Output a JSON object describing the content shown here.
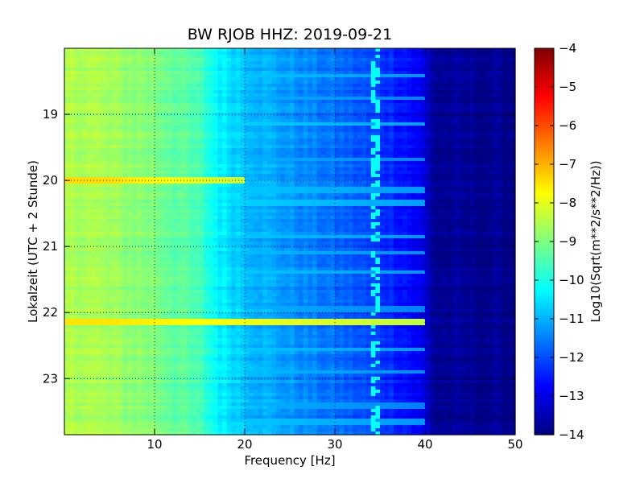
{
  "chart_data": {
    "type": "heatmap",
    "title": "BW RJOB HHZ: 2019-09-21",
    "xlabel": "Frequency [Hz]",
    "ylabel": "Lokalzeit (UTC + 2 Stunde)",
    "xlim": [
      0,
      50
    ],
    "ylim": [
      18.0,
      23.85
    ],
    "y_inverted": true,
    "grid": true,
    "x_ticks": [
      10,
      20,
      30,
      40,
      50
    ],
    "x_tick_labels": [
      "10",
      "20",
      "30",
      "40",
      "50"
    ],
    "y_ticks": [
      19,
      20,
      21,
      22,
      23
    ],
    "y_tick_labels": [
      "19",
      "20",
      "21",
      "22",
      "23"
    ],
    "colorbar": {
      "label": "Log10(Sqrt(m**2/s**2/Hz))",
      "range": [
        -14,
        -4
      ],
      "colormap": "jet",
      "ticks": [
        -14,
        -13,
        -12,
        -11,
        -10,
        -9,
        -8,
        -7,
        -6,
        -5,
        -4
      ],
      "tick_labels": [
        "−14",
        "−13",
        "−12",
        "−11",
        "−10",
        "−9",
        "−8",
        "−7",
        "−6",
        "−5",
        "−4"
      ]
    },
    "background_profile": {
      "frequency_hz": [
        0,
        2,
        5,
        10,
        15,
        17,
        20,
        25,
        30,
        35,
        38,
        40,
        41,
        50
      ],
      "level": [
        -8.6,
        -8.5,
        -8.7,
        -9.0,
        -9.6,
        -10.3,
        -10.8,
        -11.3,
        -11.7,
        -12.2,
        -12.6,
        -13.1,
        -13.8,
        -13.9
      ]
    },
    "events": [
      {
        "time": 18.18,
        "level": -10.3,
        "f_max": 25
      },
      {
        "time": 18.42,
        "level": -10.4,
        "f_max": 40
      },
      {
        "time": 18.75,
        "level": -10.6,
        "f_max": 40
      },
      {
        "time": 19.15,
        "level": -10.3,
        "f_max": 40
      },
      {
        "time": 19.68,
        "level": -10.6,
        "f_max": 40
      },
      {
        "time": 20.0,
        "level": -7.4,
        "f_max": 20
      },
      {
        "time": 20.15,
        "level": -10.4,
        "f_max": 40
      },
      {
        "time": 20.35,
        "level": -10.3,
        "f_max": 40
      },
      {
        "time": 20.85,
        "level": -10.4,
        "f_max": 40
      },
      {
        "time": 21.1,
        "level": -10.5,
        "f_max": 40
      },
      {
        "time": 21.4,
        "level": -10.4,
        "f_max": 40
      },
      {
        "time": 21.95,
        "level": -10.6,
        "f_max": 40
      },
      {
        "time": 22.15,
        "level": -7.5,
        "f_max": 40
      },
      {
        "time": 22.55,
        "level": -10.4,
        "f_max": 40
      },
      {
        "time": 22.9,
        "level": -10.5,
        "f_max": 40
      },
      {
        "time": 23.4,
        "level": -10.6,
        "f_max": 40
      },
      {
        "time": 23.65,
        "level": -10.4,
        "f_max": 40
      }
    ],
    "spectral_line": {
      "frequency_hz": 34.5,
      "level": -10.2
    }
  }
}
